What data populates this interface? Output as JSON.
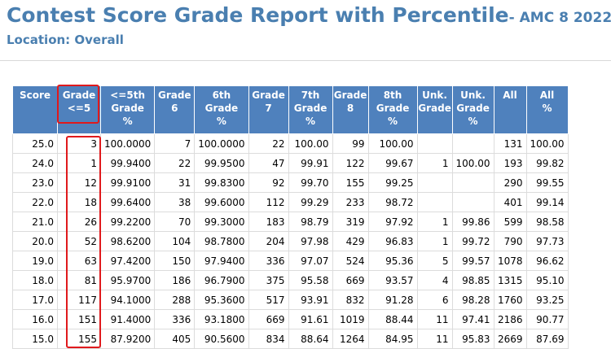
{
  "report": {
    "title_main": "Contest Score Grade Report with Percentile",
    "title_sub": "- AMC 8  2022",
    "location": "Location: Overall"
  },
  "table": {
    "headers": [
      "Score",
      "Grade\n<=5",
      "<=5th\nGrade\n%",
      "Grade\n6",
      "6th\nGrade\n%",
      "Grade\n7",
      "7th\nGrade\n%",
      "Grade\n8",
      "8th\nGrade\n%",
      "Unk.\nGrade",
      "Unk.\nGrade\n%",
      "All",
      "All\n%"
    ],
    "rows": [
      [
        "25.0",
        "3",
        "100.0000",
        "7",
        "100.0000",
        "22",
        "100.00",
        "99",
        "100.00",
        "",
        "",
        "131",
        "100.00"
      ],
      [
        "24.0",
        "1",
        "99.9400",
        "22",
        "99.9500",
        "47",
        "99.91",
        "122",
        "99.67",
        "1",
        "100.00",
        "193",
        "99.82"
      ],
      [
        "23.0",
        "12",
        "99.9100",
        "31",
        "99.8300",
        "92",
        "99.70",
        "155",
        "99.25",
        "",
        "",
        "290",
        "99.55"
      ],
      [
        "22.0",
        "18",
        "99.6400",
        "38",
        "99.6000",
        "112",
        "99.29",
        "233",
        "98.72",
        "",
        "",
        "401",
        "99.14"
      ],
      [
        "21.0",
        "26",
        "99.2200",
        "70",
        "99.3000",
        "183",
        "98.79",
        "319",
        "97.92",
        "1",
        "99.86",
        "599",
        "98.58"
      ],
      [
        "20.0",
        "52",
        "98.6200",
        "104",
        "98.7800",
        "204",
        "97.98",
        "429",
        "96.83",
        "1",
        "99.72",
        "790",
        "97.73"
      ],
      [
        "19.0",
        "63",
        "97.4200",
        "150",
        "97.9400",
        "336",
        "97.07",
        "524",
        "95.36",
        "5",
        "99.57",
        "1078",
        "96.62"
      ],
      [
        "18.0",
        "81",
        "95.9700",
        "186",
        "96.7900",
        "375",
        "95.58",
        "669",
        "93.57",
        "4",
        "98.85",
        "1315",
        "95.10"
      ],
      [
        "17.0",
        "117",
        "94.1000",
        "288",
        "95.3600",
        "517",
        "93.91",
        "832",
        "91.28",
        "6",
        "98.28",
        "1760",
        "93.25"
      ],
      [
        "16.0",
        "151",
        "91.4000",
        "336",
        "93.1800",
        "669",
        "91.61",
        "1019",
        "88.44",
        "11",
        "97.41",
        "2186",
        "90.77"
      ],
      [
        "15.0",
        "155",
        "87.9200",
        "405",
        "90.5600",
        "834",
        "88.64",
        "1264",
        "84.95",
        "11",
        "95.83",
        "2669",
        "87.69"
      ]
    ]
  },
  "highlight_color": "#e0191c",
  "header_bg": "#4f81bd",
  "title_color": "#4a7fb0"
}
